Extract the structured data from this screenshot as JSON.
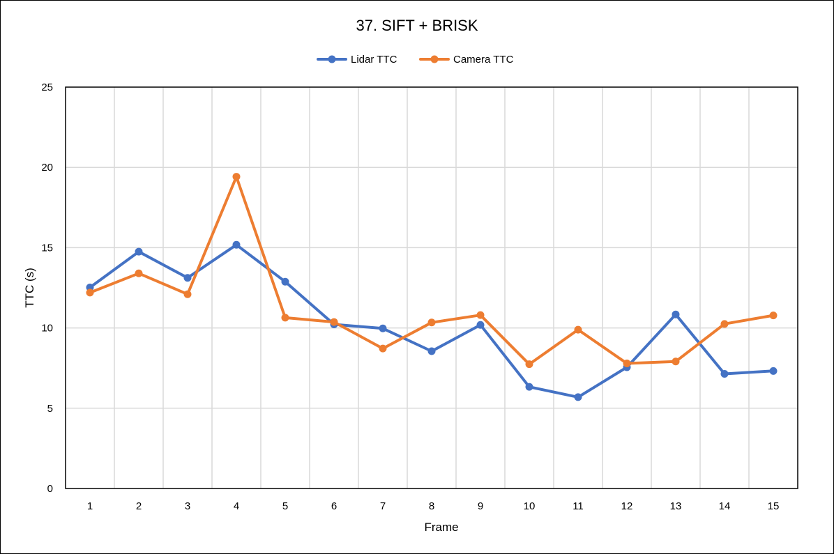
{
  "chart_data": {
    "type": "line",
    "title": "37. SIFT + BRISK",
    "xlabel": "Frame",
    "ylabel": "TTC (s)",
    "categories": [
      "1",
      "2",
      "3",
      "4",
      "5",
      "6",
      "7",
      "8",
      "9",
      "10",
      "11",
      "12",
      "13",
      "14",
      "15"
    ],
    "ylim": [
      0,
      25
    ],
    "yticks": [
      "0",
      "5",
      "10",
      "15",
      "20",
      "25"
    ],
    "grid": true,
    "legend_position": "top-center",
    "series": [
      {
        "name": "Lidar TTC",
        "color": "#4472C4",
        "values": [
          12.52,
          14.75,
          13.12,
          15.18,
          12.88,
          10.22,
          9.97,
          8.55,
          10.19,
          6.33,
          5.69,
          7.55,
          10.84,
          7.14,
          7.32
        ]
      },
      {
        "name": "Camera TTC",
        "color": "#ED7D31",
        "values": [
          12.2,
          13.4,
          12.1,
          19.42,
          10.64,
          10.37,
          8.72,
          10.34,
          10.8,
          7.74,
          9.89,
          7.79,
          7.91,
          10.25,
          10.78
        ]
      }
    ]
  }
}
